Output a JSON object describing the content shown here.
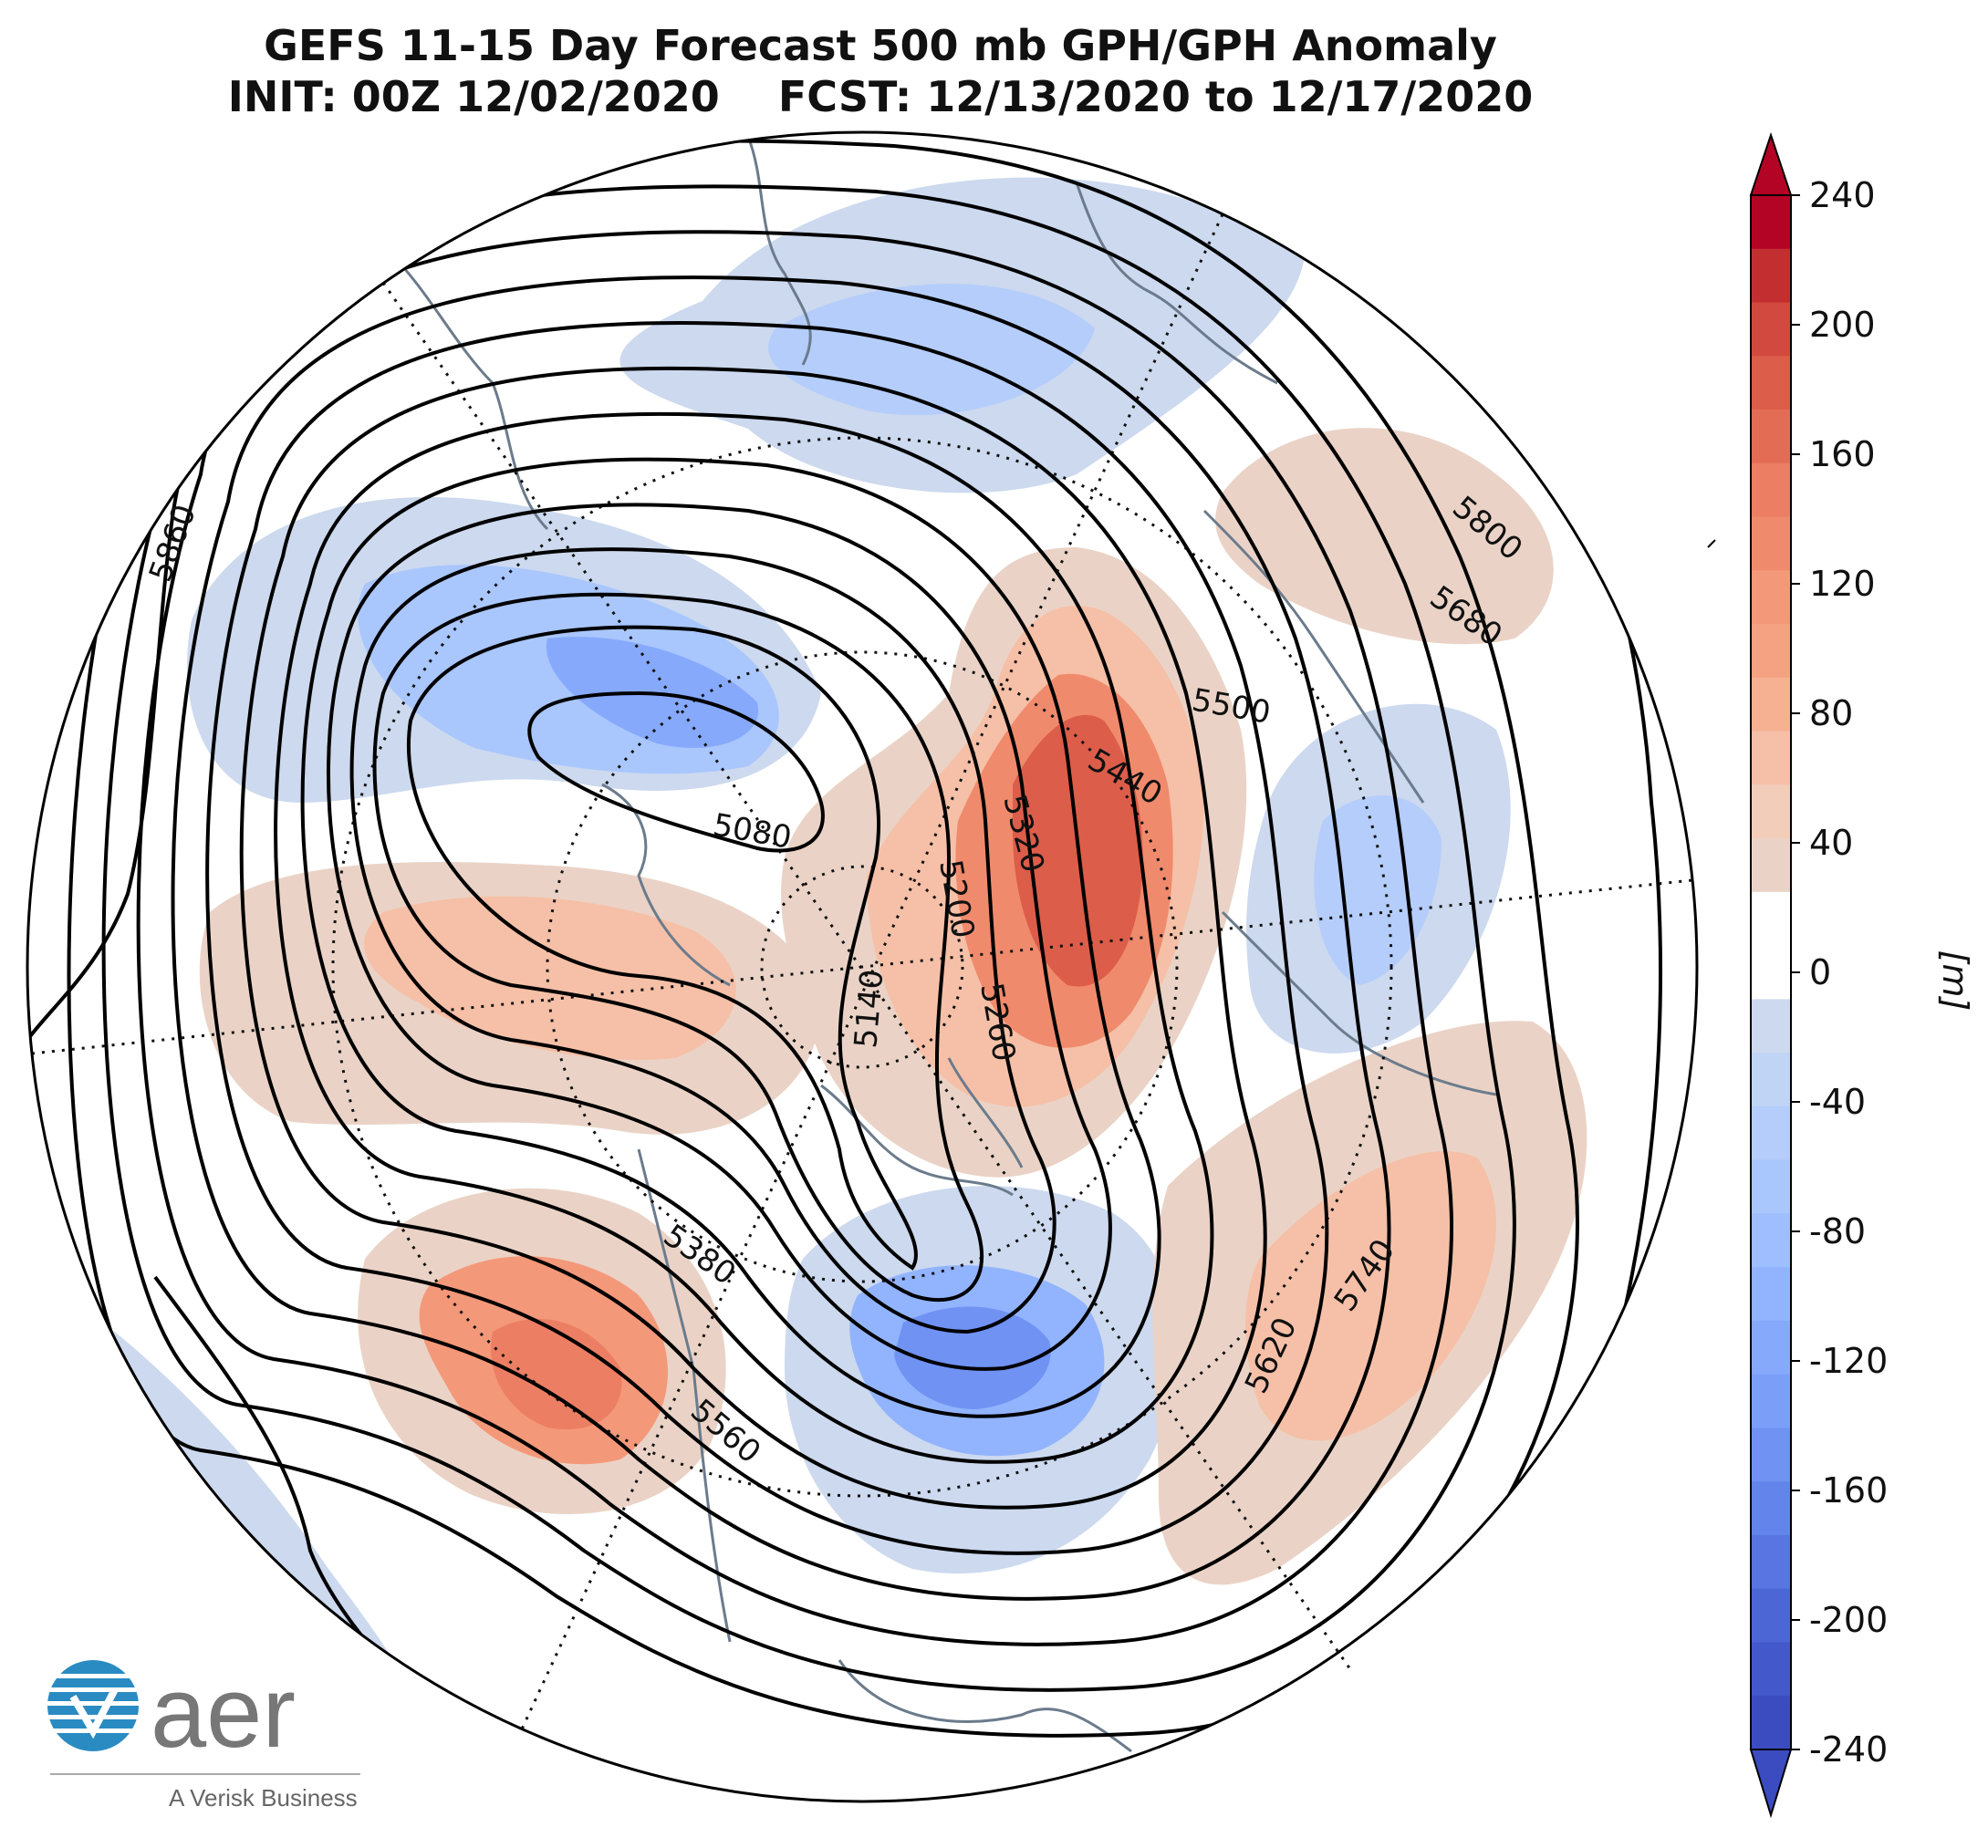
{
  "title": {
    "line1": "GEFS 11-15 Day Forecast 500 mb GPH/GPH Anomaly",
    "line2": "INIT: 00Z 12/02/2020    FCST: 12/13/2020 to 12/17/2020"
  },
  "colorbar": {
    "unit_label": "[m]",
    "ticks": [
      "240",
      "200",
      "160",
      "120",
      "80",
      "40",
      "0",
      "-40",
      "-80",
      "-120",
      "-160",
      "-200",
      "-240"
    ],
    "colors_top_to_bottom": [
      "#b40426",
      "#c32e31",
      "#d1493f",
      "#dc5d4a",
      "#e36c55",
      "#ec7f63",
      "#f08a6c",
      "#f4987a",
      "#f5a283",
      "#f6b092",
      "#f5c0a7",
      "#f1cdba",
      "#ead3c6",
      "#ffffff",
      "#ffffff",
      "#ccd9ee",
      "#c0d4f5",
      "#b5cdfa",
      "#a9c6fd",
      "#9ebeff",
      "#92b4fe",
      "#86a9fc",
      "#7b9ff9",
      "#6f92f3",
      "#6384eb",
      "#5875e1",
      "#4c66d6",
      "#4358cb",
      "#3b4cc0"
    ]
  },
  "contour_labels": [
    "5860",
    "5800",
    "5680",
    "5500",
    "5440",
    "5320",
    "5080",
    "5200",
    "5140",
    "5260",
    "5380",
    "5560",
    "5620",
    "5740"
  ],
  "logo": {
    "wordmark": "aer",
    "tagline": "A Verisk Business"
  }
}
